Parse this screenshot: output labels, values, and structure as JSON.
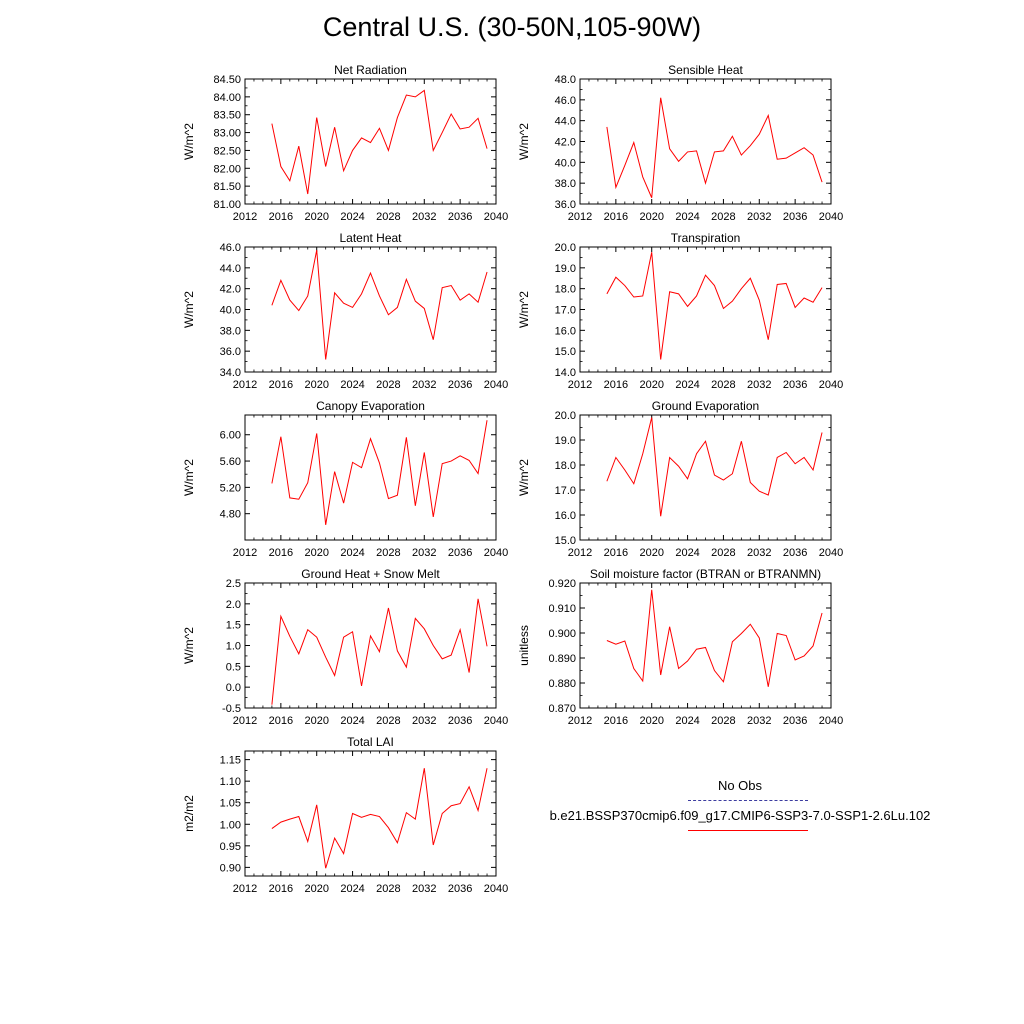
{
  "figure": {
    "title": "Central U.S. (30-50N,105-90W)",
    "line_color": "#ff0000"
  },
  "legend": {
    "entries": [
      {
        "label": "No Obs",
        "color": "#3c3ca0",
        "style": "dashed"
      },
      {
        "label": "b.e21.BSSP370cmip6.f09_g17.CMIP6-SSP3-7.0-SSP1-2.6Lu.102",
        "color": "#ff0000",
        "style": "solid"
      }
    ]
  },
  "chart_data": [
    {
      "type": "line",
      "title": "Net Radiation",
      "ylabel": "W/m^2",
      "x": [
        2015,
        2016,
        2017,
        2018,
        2019,
        2020,
        2021,
        2022,
        2023,
        2024,
        2025,
        2026,
        2027,
        2028,
        2029,
        2030,
        2031,
        2032,
        2033,
        2034,
        2035,
        2036,
        2037,
        2038,
        2039
      ],
      "values": [
        83.25,
        82.05,
        81.65,
        82.62,
        81.28,
        83.42,
        82.05,
        83.15,
        81.93,
        82.5,
        82.85,
        82.72,
        83.12,
        82.5,
        83.42,
        84.05,
        84.0,
        84.18,
        82.5,
        83.0,
        83.52,
        83.1,
        83.15,
        83.4,
        82.55
      ],
      "xlim": [
        2012,
        2040
      ],
      "ylim": [
        81.0,
        84.5
      ],
      "xticks": [
        2012,
        2016,
        2020,
        2024,
        2028,
        2032,
        2036,
        2040
      ],
      "yticks": [
        81.0,
        81.5,
        82.0,
        82.5,
        83.0,
        83.5,
        84.0,
        84.5
      ],
      "ytick_labels": [
        "81.00",
        "81.50",
        "82.00",
        "82.50",
        "83.00",
        "83.50",
        "84.00",
        "84.50"
      ]
    },
    {
      "type": "line",
      "title": "Sensible Heat",
      "ylabel": "W/m^2",
      "x": [
        2015,
        2016,
        2017,
        2018,
        2019,
        2020,
        2021,
        2022,
        2023,
        2024,
        2025,
        2026,
        2027,
        2028,
        2029,
        2030,
        2031,
        2032,
        2033,
        2034,
        2035,
        2036,
        2037,
        2038,
        2039
      ],
      "values": [
        43.4,
        37.6,
        39.7,
        41.9,
        38.6,
        36.6,
        46.2,
        41.3,
        40.1,
        41.0,
        41.1,
        38.0,
        41.0,
        41.1,
        42.5,
        40.7,
        41.6,
        42.7,
        44.5,
        40.3,
        40.4,
        40.9,
        41.4,
        40.7,
        38.1
      ],
      "xlim": [
        2012,
        2040
      ],
      "ylim": [
        36.0,
        48.0
      ],
      "xticks": [
        2012,
        2016,
        2020,
        2024,
        2028,
        2032,
        2036,
        2040
      ],
      "yticks": [
        36,
        38,
        40,
        42,
        44,
        46,
        48
      ],
      "ytick_labels": [
        "36.0",
        "38.0",
        "40.0",
        "42.0",
        "44.0",
        "46.0",
        "48.0"
      ]
    },
    {
      "type": "line",
      "title": "Latent Heat",
      "ylabel": "W/m^2",
      "x": [
        2015,
        2016,
        2017,
        2018,
        2019,
        2020,
        2021,
        2022,
        2023,
        2024,
        2025,
        2026,
        2027,
        2028,
        2029,
        2030,
        2031,
        2032,
        2033,
        2034,
        2035,
        2036,
        2037,
        2038,
        2039
      ],
      "values": [
        40.4,
        42.8,
        40.9,
        39.9,
        41.3,
        45.7,
        35.2,
        41.6,
        40.6,
        40.2,
        41.5,
        43.5,
        41.3,
        39.5,
        40.2,
        42.9,
        40.8,
        40.1,
        37.1,
        42.1,
        42.3,
        40.9,
        41.5,
        40.7,
        43.6
      ],
      "xlim": [
        2012,
        2040
      ],
      "ylim": [
        34.0,
        46.0
      ],
      "xticks": [
        2012,
        2016,
        2020,
        2024,
        2028,
        2032,
        2036,
        2040
      ],
      "yticks": [
        34,
        36,
        38,
        40,
        42,
        44,
        46
      ],
      "ytick_labels": [
        "34.0",
        "36.0",
        "38.0",
        "40.0",
        "42.0",
        "44.0",
        "46.0"
      ]
    },
    {
      "type": "line",
      "title": "Transpiration",
      "ylabel": "W/m^2",
      "x": [
        2015,
        2016,
        2017,
        2018,
        2019,
        2020,
        2021,
        2022,
        2023,
        2024,
        2025,
        2026,
        2027,
        2028,
        2029,
        2030,
        2031,
        2032,
        2033,
        2034,
        2035,
        2036,
        2037,
        2038,
        2039
      ],
      "values": [
        17.75,
        18.55,
        18.15,
        17.6,
        17.65,
        19.75,
        14.6,
        17.85,
        17.75,
        17.15,
        17.65,
        18.65,
        18.15,
        17.05,
        17.4,
        18.0,
        18.5,
        17.45,
        15.55,
        18.2,
        18.25,
        17.1,
        17.55,
        17.35,
        18.05
      ],
      "xlim": [
        2012,
        2040
      ],
      "ylim": [
        14.0,
        20.0
      ],
      "xticks": [
        2012,
        2016,
        2020,
        2024,
        2028,
        2032,
        2036,
        2040
      ],
      "yticks": [
        14,
        15,
        16,
        17,
        18,
        19,
        20
      ],
      "ytick_labels": [
        "14.0",
        "15.0",
        "16.0",
        "17.0",
        "18.0",
        "19.0",
        "20.0"
      ]
    },
    {
      "type": "line",
      "title": "Canopy Evaporation",
      "ylabel": "W/m^2",
      "x": [
        2015,
        2016,
        2017,
        2018,
        2019,
        2020,
        2021,
        2022,
        2023,
        2024,
        2025,
        2026,
        2027,
        2028,
        2029,
        2030,
        2031,
        2032,
        2033,
        2034,
        2035,
        2036,
        2037,
        2038,
        2039
      ],
      "values": [
        5.26,
        5.97,
        5.04,
        5.02,
        5.27,
        6.02,
        4.63,
        5.44,
        4.96,
        5.58,
        5.5,
        5.94,
        5.57,
        5.03,
        5.08,
        5.96,
        4.92,
        5.73,
        4.75,
        5.56,
        5.6,
        5.68,
        5.61,
        5.41,
        6.22
      ],
      "xlim": [
        2012,
        2040
      ],
      "ylim": [
        4.4,
        6.3
      ],
      "xticks": [
        2012,
        2016,
        2020,
        2024,
        2028,
        2032,
        2036,
        2040
      ],
      "yticks": [
        4.8,
        5.2,
        5.6,
        6.0
      ],
      "ytick_labels": [
        "4.80",
        "5.20",
        "5.60",
        "6.00"
      ]
    },
    {
      "type": "line",
      "title": "Ground Evaporation",
      "ylabel": "W/m^2",
      "x": [
        2015,
        2016,
        2017,
        2018,
        2019,
        2020,
        2021,
        2022,
        2023,
        2024,
        2025,
        2026,
        2027,
        2028,
        2029,
        2030,
        2031,
        2032,
        2033,
        2034,
        2035,
        2036,
        2037,
        2038,
        2039
      ],
      "values": [
        17.35,
        18.3,
        17.8,
        17.25,
        18.45,
        19.9,
        15.95,
        18.3,
        17.95,
        17.45,
        18.45,
        18.95,
        17.6,
        17.4,
        17.65,
        18.95,
        17.3,
        16.95,
        16.8,
        18.3,
        18.5,
        18.05,
        18.3,
        17.8,
        19.3
      ],
      "xlim": [
        2012,
        2040
      ],
      "ylim": [
        15.0,
        20.0
      ],
      "xticks": [
        2012,
        2016,
        2020,
        2024,
        2028,
        2032,
        2036,
        2040
      ],
      "yticks": [
        15,
        16,
        17,
        18,
        19,
        20
      ],
      "ytick_labels": [
        "15.0",
        "16.0",
        "17.0",
        "18.0",
        "19.0",
        "20.0"
      ]
    },
    {
      "type": "line",
      "title": "Ground Heat + Snow Melt",
      "ylabel": "W/m^2",
      "x": [
        2015,
        2016,
        2017,
        2018,
        2019,
        2020,
        2021,
        2022,
        2023,
        2024,
        2025,
        2026,
        2027,
        2028,
        2029,
        2030,
        2031,
        2032,
        2033,
        2034,
        2035,
        2036,
        2037,
        2038,
        2039
      ],
      "values": [
        -0.42,
        1.7,
        1.22,
        0.8,
        1.38,
        1.2,
        0.72,
        0.28,
        1.2,
        1.33,
        0.03,
        1.23,
        0.85,
        1.9,
        0.87,
        0.48,
        1.65,
        1.4,
        1.0,
        0.68,
        0.77,
        1.38,
        0.35,
        2.12,
        0.98
      ],
      "xlim": [
        2012,
        2040
      ],
      "ylim": [
        -0.5,
        2.5
      ],
      "xticks": [
        2012,
        2016,
        2020,
        2024,
        2028,
        2032,
        2036,
        2040
      ],
      "yticks": [
        -0.5,
        0.0,
        0.5,
        1.0,
        1.5,
        2.0,
        2.5
      ],
      "ytick_labels": [
        "-0.5",
        "0.0",
        "0.5",
        "1.0",
        "1.5",
        "2.0",
        "2.5"
      ]
    },
    {
      "type": "line",
      "title": "Soil moisture factor (BTRAN or BTRANMN)",
      "ylabel": "unitless",
      "x": [
        2015,
        2016,
        2017,
        2018,
        2019,
        2020,
        2021,
        2022,
        2023,
        2024,
        2025,
        2026,
        2027,
        2028,
        2029,
        2030,
        2031,
        2032,
        2033,
        2034,
        2035,
        2036,
        2037,
        2038,
        2039
      ],
      "values": [
        0.897,
        0.8955,
        0.8968,
        0.8858,
        0.8808,
        0.9173,
        0.8832,
        0.9025,
        0.8858,
        0.8888,
        0.8935,
        0.8942,
        0.885,
        0.8805,
        0.8965,
        0.8998,
        0.9035,
        0.898,
        0.8785,
        0.8998,
        0.899,
        0.8892,
        0.8908,
        0.8948,
        0.908
      ],
      "xlim": [
        2012,
        2040
      ],
      "ylim": [
        0.87,
        0.92
      ],
      "xticks": [
        2012,
        2016,
        2020,
        2024,
        2028,
        2032,
        2036,
        2040
      ],
      "yticks": [
        0.87,
        0.88,
        0.89,
        0.9,
        0.91,
        0.92
      ],
      "ytick_labels": [
        "0.870",
        "0.880",
        "0.890",
        "0.900",
        "0.910",
        "0.920"
      ]
    },
    {
      "type": "line",
      "title": "Total LAI",
      "ylabel": "m2/m2",
      "x": [
        2015,
        2016,
        2017,
        2018,
        2019,
        2020,
        2021,
        2022,
        2023,
        2024,
        2025,
        2026,
        2027,
        2028,
        2029,
        2030,
        2031,
        2032,
        2033,
        2034,
        2035,
        2036,
        2037,
        2038,
        2039
      ],
      "values": [
        0.99,
        1.005,
        1.012,
        1.018,
        0.96,
        1.045,
        0.898,
        0.968,
        0.932,
        1.025,
        1.016,
        1.023,
        1.018,
        0.992,
        0.957,
        1.027,
        1.012,
        1.13,
        0.952,
        1.025,
        1.043,
        1.048,
        1.087,
        1.032,
        1.13
      ],
      "xlim": [
        2012,
        2040
      ],
      "ylim": [
        0.88,
        1.17
      ],
      "xticks": [
        2012,
        2016,
        2020,
        2024,
        2028,
        2032,
        2036,
        2040
      ],
      "yticks": [
        0.9,
        0.95,
        1.0,
        1.05,
        1.1,
        1.15
      ],
      "ytick_labels": [
        "0.90",
        "0.95",
        "1.00",
        "1.05",
        "1.10",
        "1.15"
      ]
    }
  ]
}
